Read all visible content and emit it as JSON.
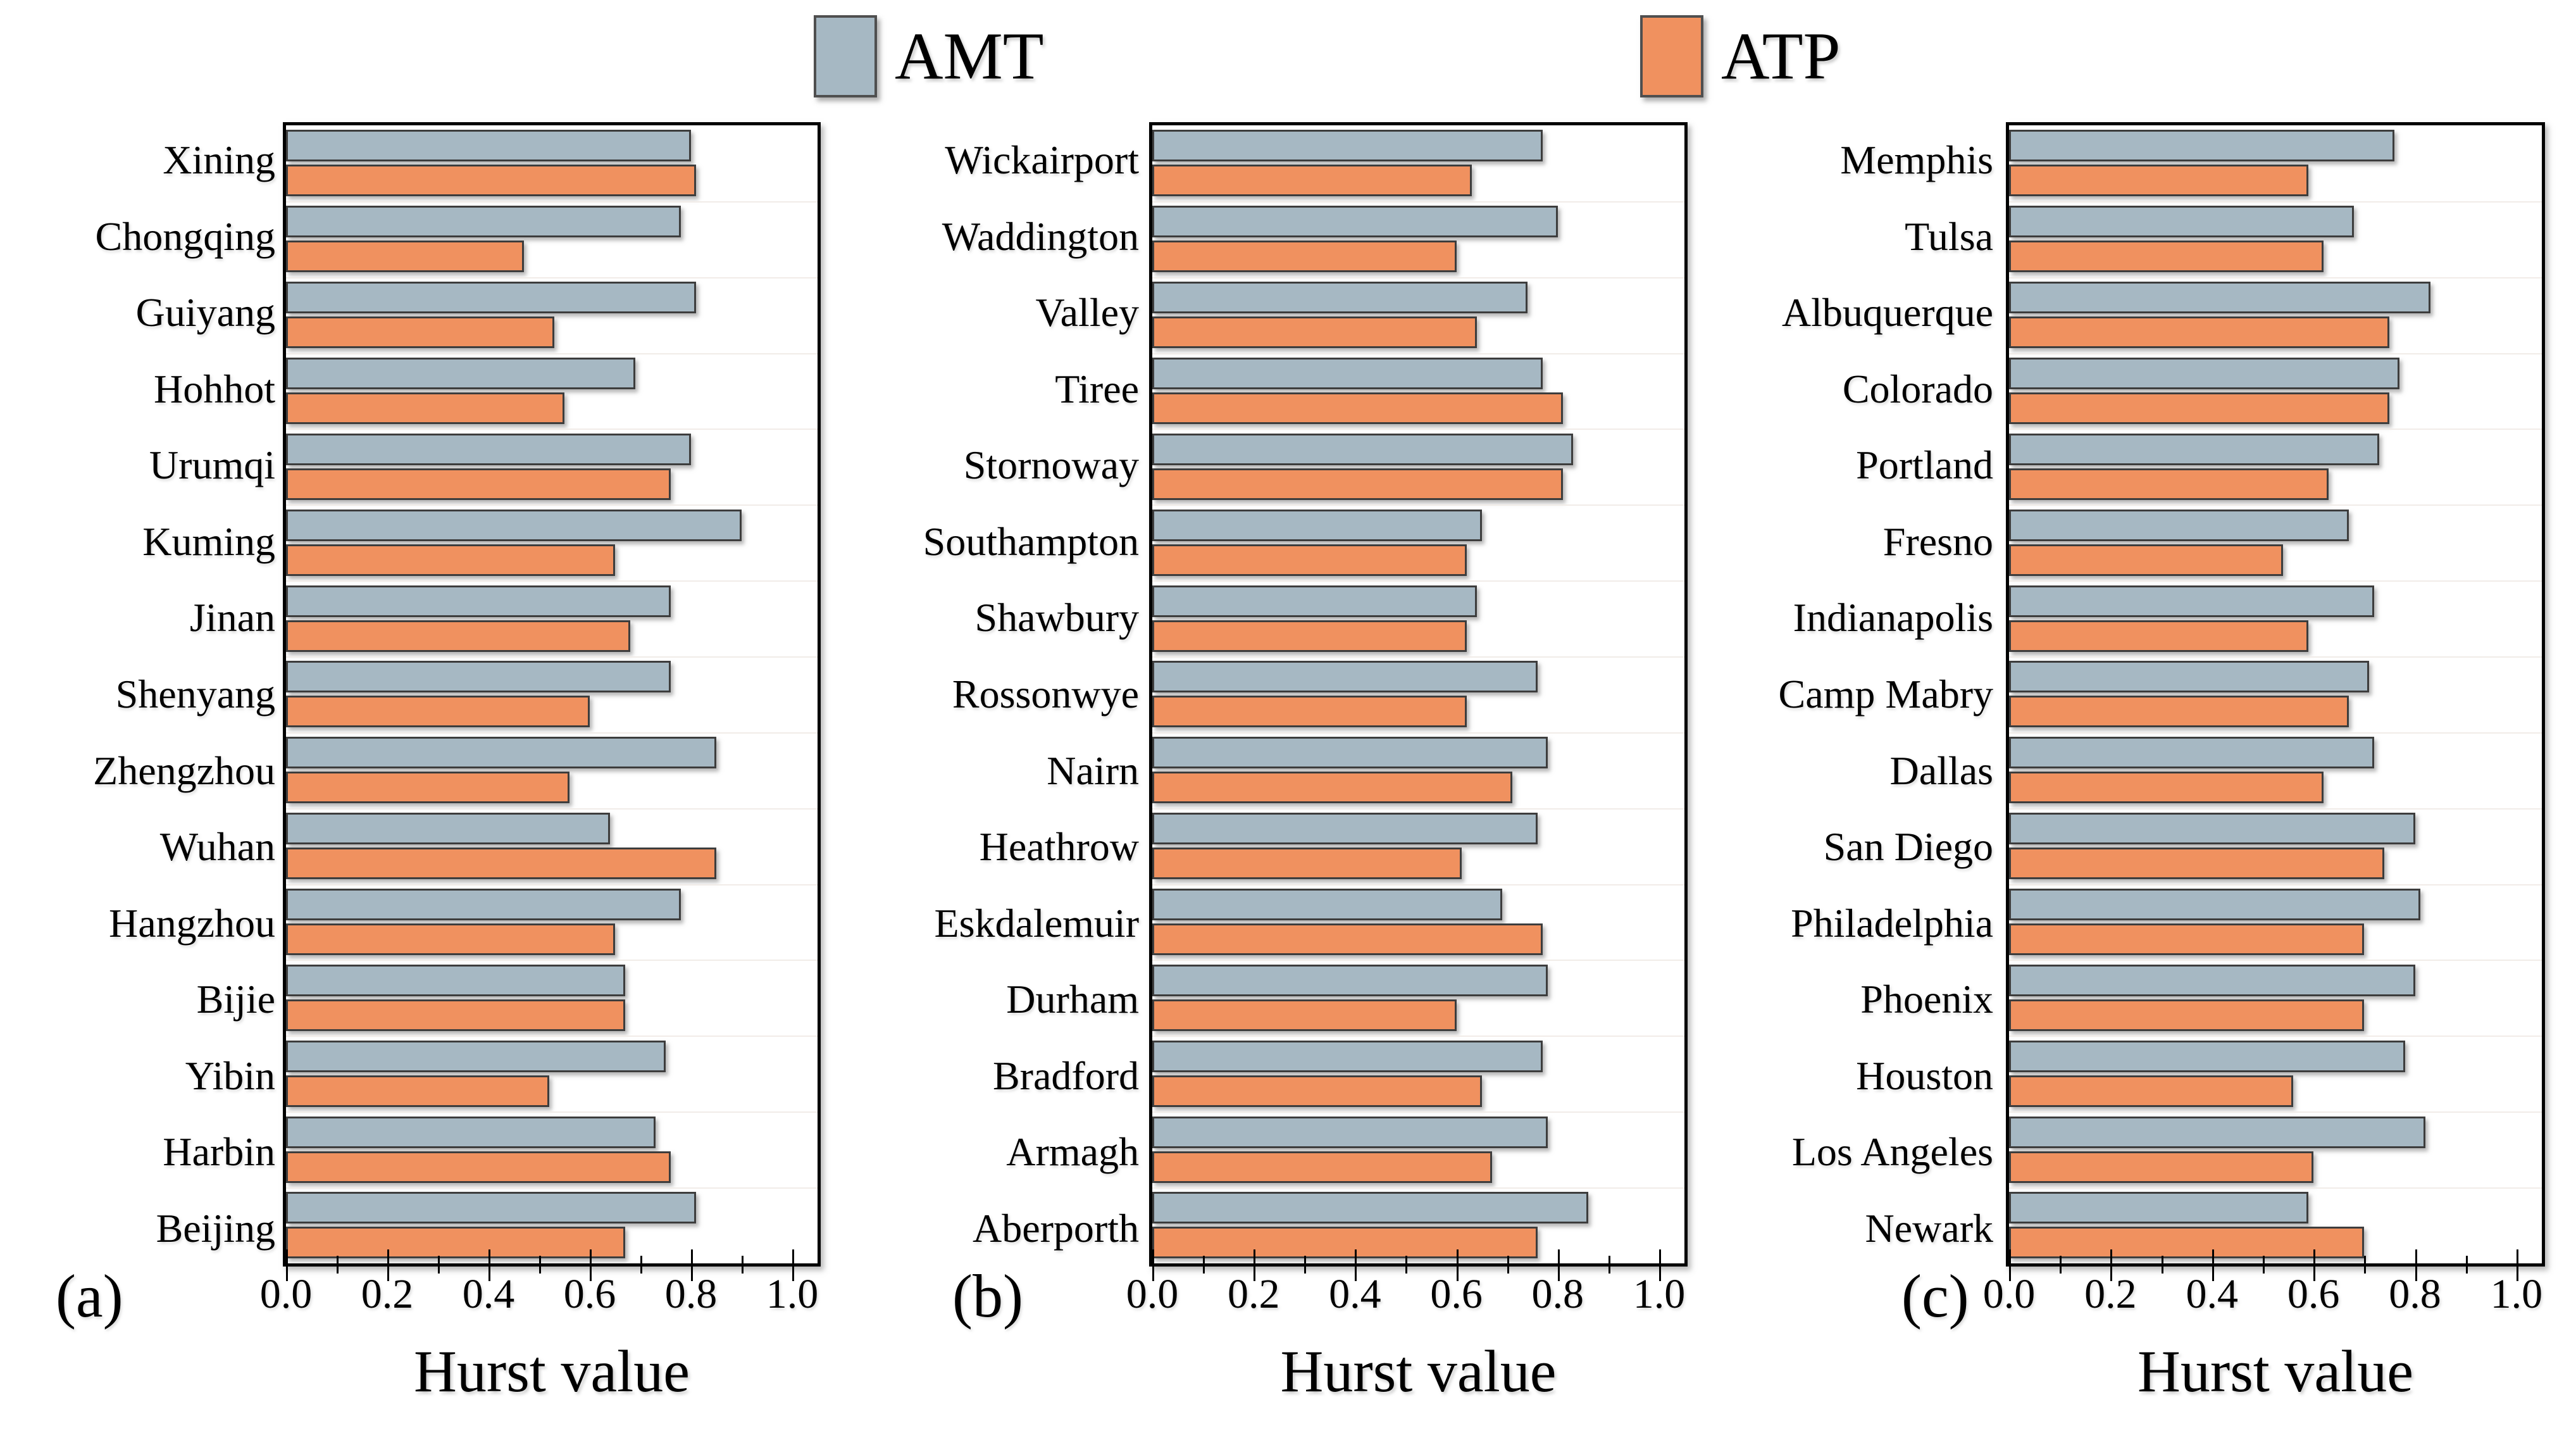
{
  "legend": {
    "items": [
      {
        "label": "AMT",
        "color": "#a6b8c3"
      },
      {
        "label": "ATP",
        "color": "#f0915f"
      }
    ]
  },
  "axis": {
    "title": "Hurst value",
    "tick_labels": [
      "0.0",
      "0.2",
      "0.4",
      "0.6",
      "0.8",
      "1.0"
    ],
    "tick_values": [
      0,
      0.2,
      0.4,
      0.6,
      0.8,
      1.0
    ],
    "minor_tick_step": 0.1,
    "x_max": 1.05
  },
  "colors": {
    "amt_fill": "#a6b8c3",
    "atp_fill": "#f0915f",
    "bar_outline": "#3d3d3d",
    "box_outline": "#000000",
    "gridline": "#f1ece8"
  },
  "chart_data": [
    {
      "type": "bar",
      "orientation": "horizontal",
      "panel_label": "(a)",
      "xlabel": "Hurst value",
      "xlim": [
        0,
        1.05
      ],
      "xticks": [
        0,
        0.2,
        0.4,
        0.6,
        0.8,
        1.0
      ],
      "grid": "faint horizontal separators",
      "legend_position": "top",
      "categories": [
        "Xining",
        "Chongqing",
        "Guiyang",
        "Hohhot",
        "Urumqi",
        "Kuming",
        "Jinan",
        "Shenyang",
        "Zhengzhou",
        "Wuhan",
        "Hangzhou",
        "Bijie",
        "Yibin",
        "Harbin",
        "Beijing"
      ],
      "series": [
        {
          "name": "AMT",
          "values": [
            0.8,
            0.78,
            0.81,
            0.69,
            0.8,
            0.9,
            0.76,
            0.76,
            0.85,
            0.64,
            0.78,
            0.67,
            0.75,
            0.73,
            0.81
          ]
        },
        {
          "name": "ATP",
          "values": [
            0.81,
            0.47,
            0.53,
            0.55,
            0.76,
            0.65,
            0.68,
            0.6,
            0.56,
            0.85,
            0.65,
            0.67,
            0.52,
            0.76,
            0.67
          ]
        }
      ]
    },
    {
      "type": "bar",
      "orientation": "horizontal",
      "panel_label": "(b)",
      "xlabel": "Hurst value",
      "xlim": [
        0,
        1.05
      ],
      "xticks": [
        0,
        0.2,
        0.4,
        0.6,
        0.8,
        1.0
      ],
      "grid": "faint horizontal separators",
      "legend_position": "top",
      "categories": [
        "Wickairport",
        "Waddington",
        "Valley",
        "Tiree",
        "Stornoway",
        "Southampton",
        "Shawbury",
        "Rossonwye",
        "Nairn",
        "Heathrow",
        "Eskdalemuir",
        "Durham",
        "Bradford",
        "Armagh",
        "Aberporth"
      ],
      "series": [
        {
          "name": "AMT",
          "values": [
            0.77,
            0.8,
            0.74,
            0.77,
            0.83,
            0.65,
            0.64,
            0.76,
            0.78,
            0.76,
            0.69,
            0.78,
            0.77,
            0.78,
            0.86
          ]
        },
        {
          "name": "ATP",
          "values": [
            0.63,
            0.6,
            0.64,
            0.81,
            0.81,
            0.62,
            0.62,
            0.62,
            0.71,
            0.61,
            0.77,
            0.6,
            0.65,
            0.67,
            0.76
          ]
        }
      ]
    },
    {
      "type": "bar",
      "orientation": "horizontal",
      "panel_label": "(c)",
      "xlabel": "Hurst value",
      "xlim": [
        0,
        1.05
      ],
      "xticks": [
        0,
        0.2,
        0.4,
        0.6,
        0.8,
        1.0
      ],
      "grid": "faint horizontal separators",
      "legend_position": "top",
      "categories": [
        "Memphis",
        "Tulsa",
        "Albuquerque",
        "Colorado",
        "Portland",
        "Fresno",
        "Indianapolis",
        "Camp Mabry",
        "Dallas",
        "San Diego",
        "Philadelphia",
        "Phoenix",
        "Houston",
        "Los Angeles",
        "Newark"
      ],
      "series": [
        {
          "name": "AMT",
          "values": [
            0.76,
            0.68,
            0.83,
            0.77,
            0.73,
            0.67,
            0.72,
            0.71,
            0.72,
            0.8,
            0.81,
            0.8,
            0.78,
            0.82,
            0.59
          ]
        },
        {
          "name": "ATP",
          "values": [
            0.59,
            0.62,
            0.75,
            0.75,
            0.63,
            0.54,
            0.59,
            0.67,
            0.62,
            0.74,
            0.7,
            0.7,
            0.56,
            0.6,
            0.7
          ]
        }
      ]
    }
  ]
}
